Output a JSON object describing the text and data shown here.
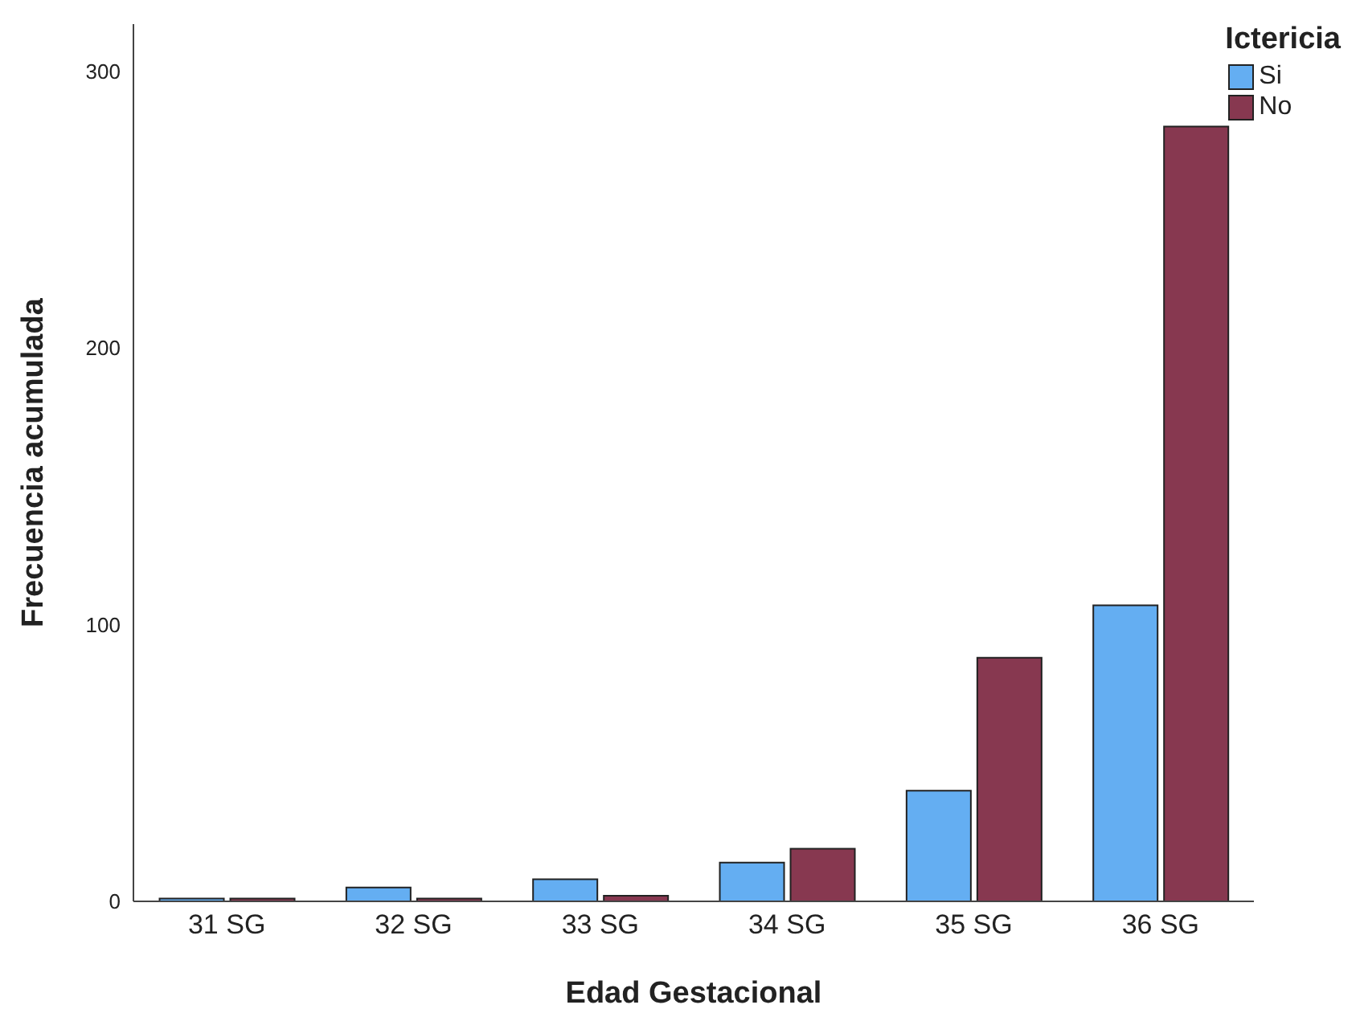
{
  "chart_data": {
    "type": "bar",
    "xlabel": "Edad Gestacional",
    "ylabel": "Frecuencia acumulada",
    "legend_title": "Ictericia",
    "categories": [
      "31 SG",
      "32 SG",
      "33 SG",
      "34 SG",
      "35 SG",
      "36 SG"
    ],
    "series": [
      {
        "name": "Si",
        "color": "#64aef2",
        "values": [
          1,
          5,
          8,
          14,
          40,
          107
        ]
      },
      {
        "name": "No",
        "color": "#873850",
        "values": [
          1,
          1,
          2,
          19,
          88,
          280
        ]
      }
    ],
    "ylim": [
      0,
      317
    ],
    "yticks": [
      0,
      100,
      200,
      300
    ],
    "grid": false,
    "legend": "top right"
  }
}
